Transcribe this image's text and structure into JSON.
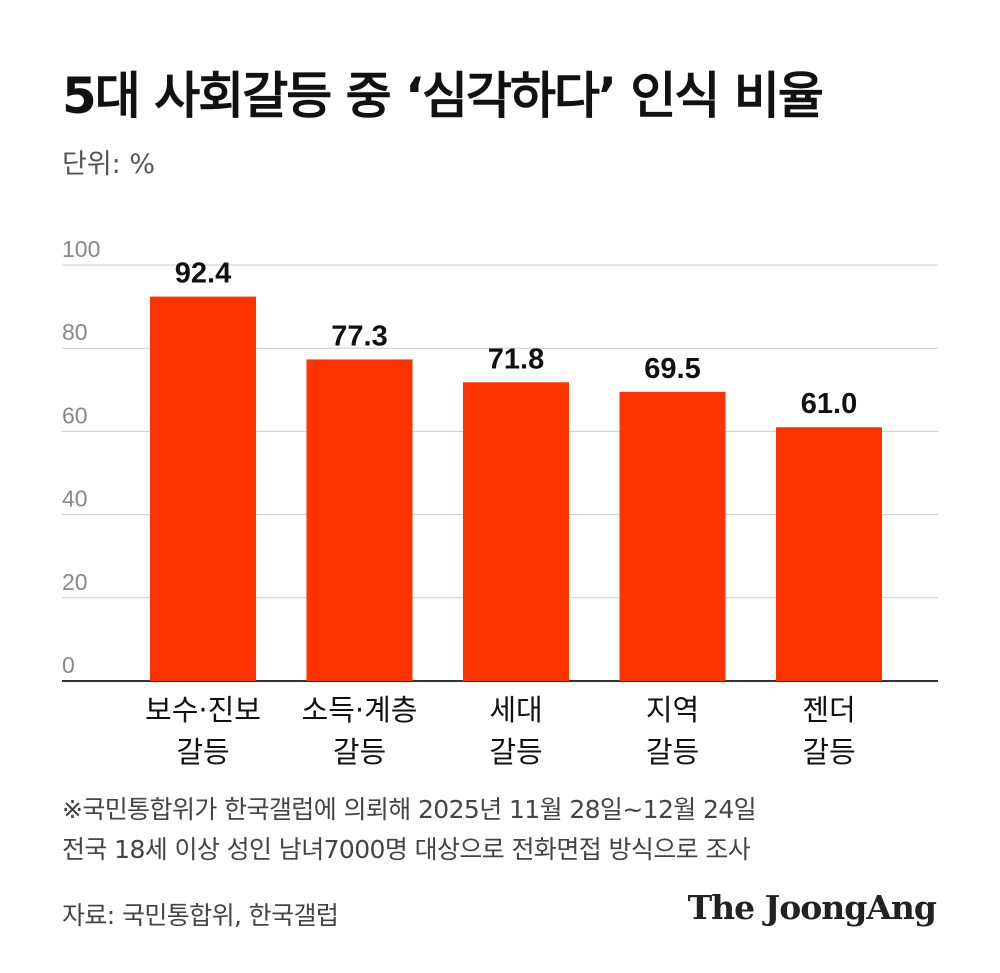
{
  "title": "5대 사회갈등 중 ‘심각하다’ 인식 비율",
  "unit": "단위: %",
  "chart_data": {
    "type": "bar",
    "categories": [
      [
        "보수·진보",
        "갈등"
      ],
      [
        "소득·계층",
        "갈등"
      ],
      [
        "세대",
        "갈등"
      ],
      [
        "지역",
        "갈등"
      ],
      [
        "젠더",
        "갈등"
      ]
    ],
    "values": [
      92.4,
      77.3,
      71.8,
      69.5,
      61.0
    ],
    "value_labels": [
      "92.4",
      "77.3",
      "71.8",
      "69.5",
      "61.0"
    ],
    "yticks": [
      0,
      20,
      40,
      60,
      80,
      100
    ],
    "ylim": [
      0,
      100
    ],
    "grid": true,
    "bar_color": "#ff3300"
  },
  "note": {
    "line1": "※국민통합위가 한국갤럽에 의뢰해 2025년 11월 28일~12월 24일",
    "line2": "전국 18세 이상 성인 남녀7000명 대상으로 전화면접 방식으로 조사"
  },
  "source": "자료: 국민통합위, 한국갤럽",
  "brand": "The JoongAng",
  "colors": {
    "bar": "#ff3300",
    "grid": "#cccccc",
    "axis": "#333333",
    "tick": "#888888"
  }
}
